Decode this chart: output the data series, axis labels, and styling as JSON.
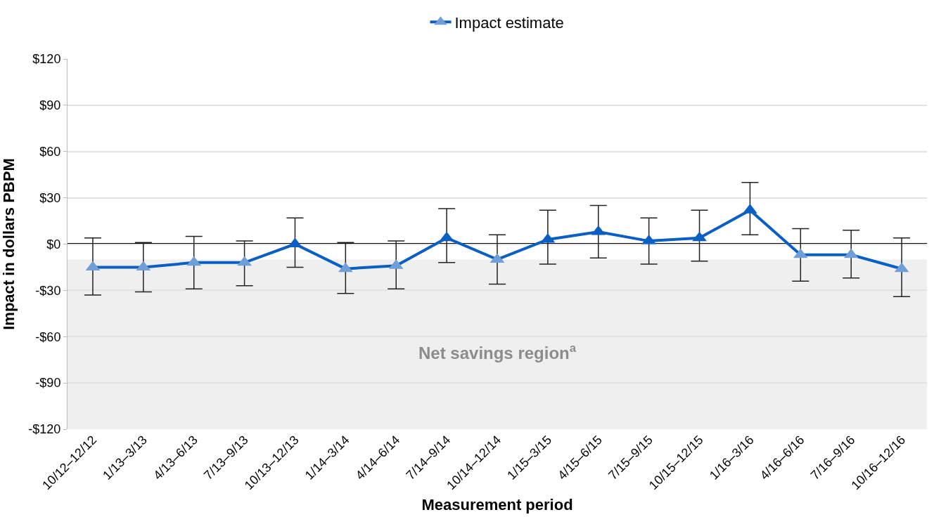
{
  "chart_data": {
    "type": "line",
    "xlabel": "Measurement period",
    "ylabel": "Impact in dollars PBPM",
    "categories": [
      "10/12–12/12",
      "1/13–3/13",
      "4/13–6/13",
      "7/13–9/13",
      "10/13–12/13",
      "1/14–3/14",
      "4/14–6/14",
      "7/14–9/14",
      "10/14–12/14",
      "1/15–3/15",
      "4/15–6/15",
      "7/15–9/15",
      "10/15–12/15",
      "1/16–3/16",
      "4/16–6/16",
      "7/16–9/16",
      "10/16–12/16"
    ],
    "series": [
      {
        "name": "Impact estimate",
        "color": "#0a5fc4",
        "colors": [
          "#6f9fd8",
          "#6f9fd8",
          "#6f9fd8",
          "#6f9fd8",
          "#0a5fc4",
          "#6f9fd8",
          "#6f9fd8",
          "#0a5fc4",
          "#6f9fd8",
          "#0a5fc4",
          "#0a5fc4",
          "#0a5fc4",
          "#0a5fc4",
          "#0a5fc4",
          "#6f9fd8",
          "#6f9fd8",
          "#6f9fd8"
        ],
        "values": [
          -15,
          -15,
          -12,
          -12,
          0,
          -16,
          -14,
          4,
          -10,
          3,
          8,
          2,
          4,
          22,
          -7,
          -7,
          -16
        ],
        "errors": [
          [
            -33,
            4
          ],
          [
            -31,
            1
          ],
          [
            -29,
            5
          ],
          [
            -27,
            2
          ],
          [
            -15,
            17
          ],
          [
            -32,
            1
          ],
          [
            -29,
            2
          ],
          [
            -12,
            23
          ],
          [
            -26,
            6
          ],
          [
            -13,
            22
          ],
          [
            -9,
            25
          ],
          [
            -13,
            17
          ],
          [
            -11,
            22
          ],
          [
            6,
            40
          ],
          [
            -24,
            10
          ],
          [
            -22,
            9
          ],
          [
            -34,
            4
          ]
        ]
      }
    ],
    "ylim": [
      -120,
      120
    ],
    "yticks": [
      {
        "value": -120,
        "label": "-$120"
      },
      {
        "value": -90,
        "label": "-$90"
      },
      {
        "value": -60,
        "label": "-$60"
      },
      {
        "value": -30,
        "label": "-$30"
      },
      {
        "value": 0,
        "label": "$0"
      },
      {
        "value": 30,
        "label": "$30"
      },
      {
        "value": 60,
        "label": "$60"
      },
      {
        "value": 90,
        "label": "$90"
      },
      {
        "value": 120,
        "label": "$120"
      }
    ],
    "ref_lines": [
      {
        "axis": "y",
        "value": 0,
        "label": null,
        "color": "#000000"
      }
    ],
    "bands": [
      {
        "axis": "y",
        "from": -120,
        "to": -10,
        "label": "Net savings region$^{a}$",
        "color": "#efefef"
      }
    ],
    "grid": "y",
    "legend": "top",
    "marker": "triangle",
    "line_style": "solid"
  }
}
